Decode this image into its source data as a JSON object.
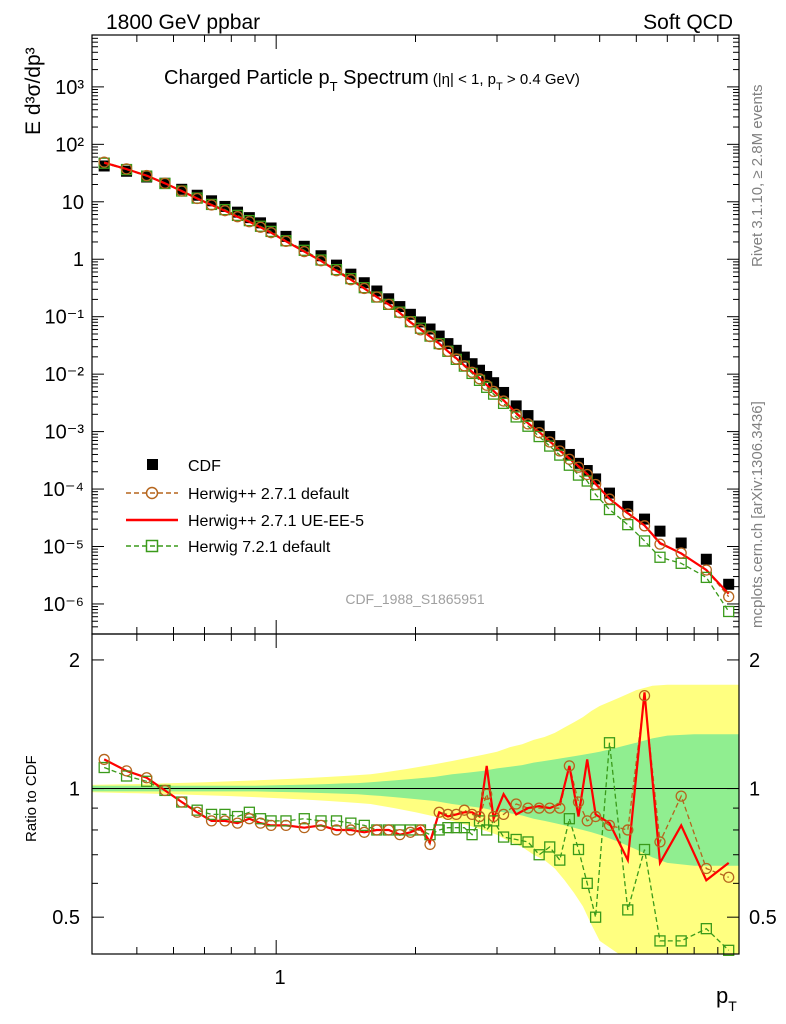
{
  "header": {
    "left": "1800 GeV ppbar",
    "right": "Soft QCD"
  },
  "side_text": {
    "top": "Rivet 3.1.10, ≥ 2.8M events",
    "bottom": "mcplots.cern.ch [arXiv:1306.3436]"
  },
  "watermark": "CDF_1988_S1865951",
  "colors": {
    "data": "#000000",
    "h271_default": "#b5651d",
    "h271_ueee5": "#ff0000",
    "h721": "#3a9a1a",
    "band_inner": "#90ee90",
    "band_outer": "#ffff80"
  },
  "chart_data": [
    {
      "type": "scatter",
      "panel": "main",
      "title": "Charged Particle p_T Spectrum",
      "title_main": "Charged Particle p",
      "title_sub": "T",
      "title_main2": " Spectrum",
      "title_cut_a": "(|η| < 1, p",
      "title_cut_sub": "T",
      "title_cut_b": " > 0.4 GeV)",
      "ylabel": "E d³σ/dp³",
      "yscale": "log",
      "xscale": "log",
      "xlim": [
        0.4,
        10.0
      ],
      "ylim": [
        3e-07,
        8000
      ],
      "y_tick_labels": [
        "10⁻⁶",
        "10⁻⁵",
        "10⁻⁴",
        "10⁻³",
        "10⁻²",
        "10⁻¹",
        "1",
        "10",
        "10²",
        "10³"
      ],
      "legend_position": "bottom-left",
      "series": [
        {
          "name": "CDF",
          "marker": "filled-square",
          "x": [
            0.425,
            0.475,
            0.525,
            0.575,
            0.625,
            0.675,
            0.725,
            0.775,
            0.825,
            0.875,
            0.925,
            0.975,
            1.05,
            1.15,
            1.25,
            1.35,
            1.45,
            1.55,
            1.65,
            1.75,
            1.85,
            1.95,
            2.05,
            2.15,
            2.25,
            2.35,
            2.45,
            2.55,
            2.65,
            2.75,
            2.85,
            2.95,
            3.1,
            3.3,
            3.5,
            3.7,
            3.9,
            4.1,
            4.3,
            4.5,
            4.7,
            4.9,
            5.25,
            5.75,
            6.25,
            6.75,
            7.5,
            8.5,
            9.5
          ],
          "y": [
            42,
            34,
            27,
            21,
            16.5,
            13,
            10.4,
            8.3,
            6.6,
            5.3,
            4.3,
            3.5,
            2.5,
            1.68,
            1.15,
            0.79,
            0.55,
            0.39,
            0.28,
            0.205,
            0.15,
            0.11,
            0.081,
            0.061,
            0.046,
            0.034,
            0.026,
            0.0198,
            0.0152,
            0.0117,
            0.0091,
            0.0071,
            0.0048,
            0.0028,
            0.0019,
            0.00125,
            0.00082,
            0.00057,
            0.0004,
            0.00028,
            0.00021,
            0.00015,
            8.5e-05,
            5e-05,
            3e-05,
            1.85e-05,
            1.15e-05,
            6e-06,
            2.2e-06
          ]
        },
        {
          "name": "Herwig++ 2.7.1 default",
          "marker": "open-circle",
          "line": "dashed",
          "x": [
            0.425,
            0.475,
            0.525,
            0.575,
            0.625,
            0.675,
            0.725,
            0.775,
            0.825,
            0.875,
            0.925,
            0.975,
            1.05,
            1.15,
            1.25,
            1.35,
            1.45,
            1.55,
            1.65,
            1.75,
            1.85,
            1.95,
            2.05,
            2.15,
            2.25,
            2.35,
            2.45,
            2.55,
            2.65,
            2.75,
            2.85,
            2.95,
            3.1,
            3.3,
            3.5,
            3.7,
            3.9,
            4.1,
            4.3,
            4.5,
            4.7,
            4.9,
            5.25,
            5.75,
            6.25,
            6.75,
            7.5,
            8.5,
            9.5
          ],
          "y": [
            49,
            37.4,
            28.6,
            21,
            15.4,
            11.4,
            8.8,
            7.0,
            5.5,
            4.5,
            3.6,
            2.9,
            2.05,
            1.36,
            0.94,
            0.63,
            0.44,
            0.31,
            0.22,
            0.164,
            0.117,
            0.081,
            0.059,
            0.045,
            0.033,
            0.025,
            0.0184,
            0.014,
            0.0108,
            0.0083,
            0.0064,
            0.005,
            0.0034,
            0.002,
            0.00136,
            0.00096,
            0.00066,
            0.00046,
            0.00033,
            0.00024,
            0.000179,
            0.00012,
            6.7e-05,
            3.7e-05,
            2.29e-05,
            1.1e-05,
            7.7e-06,
            3.9e-06,
            1.34e-06
          ]
        },
        {
          "name": "Herwig++ 2.7.1 UE-EE-5",
          "marker": "none",
          "line": "solid",
          "x": [
            0.425,
            0.475,
            0.525,
            0.575,
            0.625,
            0.675,
            0.725,
            0.775,
            0.825,
            0.875,
            0.925,
            0.975,
            1.05,
            1.15,
            1.25,
            1.35,
            1.45,
            1.55,
            1.65,
            1.75,
            1.85,
            1.95,
            2.05,
            2.15,
            2.25,
            2.35,
            2.45,
            2.55,
            2.65,
            2.75,
            2.85,
            2.95,
            3.1,
            3.3,
            3.5,
            3.7,
            3.9,
            4.1,
            4.3,
            4.5,
            4.7,
            4.9,
            5.25,
            5.75,
            6.25,
            6.75,
            7.5,
            8.5,
            9.5
          ],
          "y": [
            48,
            37,
            28.6,
            21,
            15.4,
            11.4,
            8.8,
            7.0,
            5.5,
            4.5,
            3.6,
            2.9,
            2.05,
            1.36,
            0.94,
            0.63,
            0.44,
            0.31,
            0.22,
            0.164,
            0.117,
            0.08,
            0.06,
            0.045,
            0.034,
            0.025,
            0.0189,
            0.0142,
            0.011,
            0.0085,
            0.0065,
            0.0051,
            0.0035,
            0.0021,
            0.0014,
            0.00098,
            0.00068,
            0.00047,
            0.00034,
            0.00025,
            0.000182,
            0.000123,
            6.8e-05,
            3.8e-05,
            2.33e-05,
            1.15e-05,
            7.6e-06,
            3.9e-06,
            1.5e-06
          ]
        },
        {
          "name": "Herwig 7.2.1 default",
          "marker": "open-square",
          "line": "dashed",
          "x": [
            0.425,
            0.475,
            0.525,
            0.575,
            0.625,
            0.675,
            0.725,
            0.775,
            0.825,
            0.875,
            0.925,
            0.975,
            1.05,
            1.15,
            1.25,
            1.35,
            1.45,
            1.55,
            1.65,
            1.75,
            1.85,
            1.95,
            2.05,
            2.15,
            2.25,
            2.35,
            2.45,
            2.55,
            2.65,
            2.75,
            2.85,
            2.95,
            3.1,
            3.3,
            3.5,
            3.7,
            3.9,
            4.1,
            4.3,
            4.5,
            4.7,
            4.9,
            5.25,
            5.75,
            6.25,
            6.75,
            7.5,
            8.5,
            9.5
          ],
          "y": [
            47,
            36.4,
            28,
            20.8,
            15.4,
            11.6,
            9.0,
            7.3,
            5.8,
            4.7,
            3.75,
            3.05,
            2.1,
            1.43,
            0.97,
            0.66,
            0.46,
            0.32,
            0.22,
            0.164,
            0.12,
            0.082,
            0.063,
            0.046,
            0.034,
            0.025,
            0.0181,
            0.0138,
            0.0103,
            0.0078,
            0.0059,
            0.0045,
            0.0031,
            0.0018,
            0.00124,
            0.00082,
            0.00056,
            0.00039,
            0.00026,
            0.000175,
            0.000138,
            8e-05,
            4.4e-05,
            2.4e-05,
            1.25e-05,
            6.5e-06,
            5.1e-06,
            2.9e-06,
            7.4e-07
          ]
        }
      ]
    },
    {
      "type": "line",
      "panel": "ratio",
      "xlabel": "p",
      "xlabel_sub": "T",
      "ylabel": "Ratio to CDF",
      "xscale": "log",
      "xlim": [
        0.4,
        10.0
      ],
      "ylim": [
        0.41,
        2.3
      ],
      "x_tick_labels": [
        "1"
      ],
      "y_tick_labels": [
        "0.5",
        "1",
        "2"
      ],
      "bands": {
        "x": [
          0.4,
          0.5,
          0.6,
          0.7,
          0.8,
          0.9,
          1.0,
          1.1,
          1.2,
          1.3,
          1.4,
          1.5,
          1.6,
          1.7,
          1.8,
          1.9,
          2.0,
          2.2,
          2.4,
          2.6,
          2.8,
          3.0,
          3.2,
          3.4,
          3.6,
          3.8,
          4.0,
          4.2,
          4.4,
          4.6,
          4.8,
          5.0,
          5.5,
          6.0,
          6.5,
          7.0,
          8.0,
          9.0,
          10.0
        ],
        "inner_low": [
          0.985,
          0.985,
          0.985,
          0.985,
          0.985,
          0.985,
          0.982,
          0.98,
          0.978,
          0.975,
          0.972,
          0.97,
          0.965,
          0.96,
          0.955,
          0.95,
          0.945,
          0.935,
          0.92,
          0.91,
          0.9,
          0.885,
          0.875,
          0.865,
          0.85,
          0.84,
          0.83,
          0.82,
          0.81,
          0.8,
          0.79,
          0.78,
          0.75,
          0.72,
          0.69,
          0.67,
          0.66,
          0.66,
          0.66
        ],
        "inner_high": [
          1.015,
          1.015,
          1.015,
          1.015,
          1.015,
          1.015,
          1.018,
          1.02,
          1.022,
          1.025,
          1.028,
          1.03,
          1.035,
          1.04,
          1.045,
          1.05,
          1.055,
          1.065,
          1.08,
          1.09,
          1.1,
          1.115,
          1.125,
          1.135,
          1.15,
          1.16,
          1.17,
          1.18,
          1.19,
          1.2,
          1.21,
          1.22,
          1.25,
          1.28,
          1.31,
          1.33,
          1.34,
          1.34,
          1.34
        ],
        "outer_low": [
          0.98,
          0.975,
          0.97,
          0.965,
          0.96,
          0.955,
          0.95,
          0.945,
          0.94,
          0.935,
          0.93,
          0.925,
          0.92,
          0.91,
          0.9,
          0.89,
          0.88,
          0.86,
          0.84,
          0.82,
          0.8,
          0.78,
          0.75,
          0.73,
          0.7,
          0.68,
          0.65,
          0.61,
          0.57,
          0.53,
          0.48,
          0.44,
          0.41,
          0.41,
          0.41,
          0.41,
          0.41,
          0.41,
          0.41
        ],
        "outer_high": [
          1.02,
          1.025,
          1.03,
          1.035,
          1.04,
          1.045,
          1.05,
          1.055,
          1.06,
          1.065,
          1.07,
          1.075,
          1.08,
          1.09,
          1.1,
          1.11,
          1.12,
          1.14,
          1.16,
          1.18,
          1.2,
          1.22,
          1.25,
          1.27,
          1.3,
          1.32,
          1.35,
          1.39,
          1.43,
          1.47,
          1.52,
          1.56,
          1.63,
          1.7,
          1.74,
          1.75,
          1.75,
          1.75,
          1.75
        ]
      },
      "series": [
        {
          "name": "Herwig++ 2.7.1 default",
          "x": [
            0.425,
            0.475,
            0.525,
            0.575,
            0.625,
            0.675,
            0.725,
            0.775,
            0.825,
            0.875,
            0.925,
            0.975,
            1.05,
            1.15,
            1.25,
            1.35,
            1.45,
            1.55,
            1.65,
            1.75,
            1.85,
            1.95,
            2.05,
            2.15,
            2.25,
            2.35,
            2.45,
            2.55,
            2.65,
            2.75,
            2.85,
            2.95,
            3.1,
            3.3,
            3.5,
            3.7,
            3.9,
            4.1,
            4.3,
            4.5,
            4.7,
            4.9,
            5.25,
            5.75,
            6.25,
            6.75,
            7.5,
            8.5,
            9.5
          ],
          "y": [
            1.17,
            1.1,
            1.06,
            0.99,
            0.93,
            0.88,
            0.84,
            0.84,
            0.83,
            0.85,
            0.83,
            0.82,
            0.82,
            0.81,
            0.82,
            0.8,
            0.8,
            0.79,
            0.8,
            0.8,
            0.78,
            0.79,
            0.8,
            0.74,
            0.88,
            0.87,
            0.87,
            0.89,
            0.87,
            0.86,
            0.97,
            0.86,
            0.87,
            0.92,
            0.9,
            0.9,
            0.9,
            0.9,
            1.13,
            0.93,
            0.84,
            0.86,
            0.82,
            0.8,
            1.65,
            0.75,
            0.96,
            0.65,
            0.62
          ]
        },
        {
          "name": "Herwig++ 2.7.1 UE-EE-5",
          "x": [
            0.425,
            0.475,
            0.525,
            0.575,
            0.625,
            0.675,
            0.725,
            0.775,
            0.825,
            0.875,
            0.925,
            0.975,
            1.05,
            1.15,
            1.25,
            1.35,
            1.45,
            1.55,
            1.65,
            1.75,
            1.85,
            1.95,
            2.05,
            2.15,
            2.25,
            2.35,
            2.45,
            2.55,
            2.65,
            2.75,
            2.85,
            2.95,
            3.1,
            3.3,
            3.5,
            3.7,
            3.9,
            4.1,
            4.3,
            4.5,
            4.7,
            4.9,
            5.25,
            5.75,
            6.25,
            6.75,
            7.5,
            8.5,
            9.5
          ],
          "y": [
            1.17,
            1.1,
            1.06,
            0.99,
            0.93,
            0.88,
            0.84,
            0.84,
            0.83,
            0.85,
            0.83,
            0.82,
            0.82,
            0.81,
            0.82,
            0.8,
            0.8,
            0.79,
            0.8,
            0.8,
            0.78,
            0.79,
            0.81,
            0.75,
            0.88,
            0.86,
            0.87,
            0.88,
            0.88,
            0.86,
            1.13,
            0.85,
            0.97,
            0.87,
            0.9,
            0.91,
            0.9,
            0.92,
            1.13,
            0.86,
            1.17,
            0.87,
            0.83,
            0.68,
            1.68,
            0.67,
            0.82,
            0.61,
            0.67
          ]
        },
        {
          "name": "Herwig 7.2.1 default",
          "x": [
            0.425,
            0.475,
            0.525,
            0.575,
            0.625,
            0.675,
            0.725,
            0.775,
            0.825,
            0.875,
            0.925,
            0.975,
            1.05,
            1.15,
            1.25,
            1.35,
            1.45,
            1.55,
            1.65,
            1.75,
            1.85,
            1.95,
            2.05,
            2.15,
            2.25,
            2.35,
            2.45,
            2.55,
            2.65,
            2.75,
            2.85,
            2.95,
            3.1,
            3.3,
            3.5,
            3.7,
            3.9,
            4.1,
            4.3,
            4.5,
            4.7,
            4.9,
            5.25,
            5.75,
            6.25,
            6.75,
            7.5,
            8.5,
            9.5
          ],
          "y": [
            1.12,
            1.07,
            1.04,
            0.99,
            0.93,
            0.89,
            0.87,
            0.87,
            0.86,
            0.88,
            0.85,
            0.84,
            0.84,
            0.85,
            0.84,
            0.84,
            0.83,
            0.82,
            0.8,
            0.8,
            0.8,
            0.8,
            0.8,
            0.78,
            0.8,
            0.81,
            0.81,
            0.81,
            0.78,
            0.84,
            0.8,
            0.84,
            0.77,
            0.76,
            0.75,
            0.7,
            0.73,
            0.68,
            0.85,
            0.72,
            0.6,
            0.5,
            1.28,
            0.52,
            0.72,
            0.44,
            0.44,
            0.47,
            0.33
          ]
        }
      ]
    }
  ]
}
